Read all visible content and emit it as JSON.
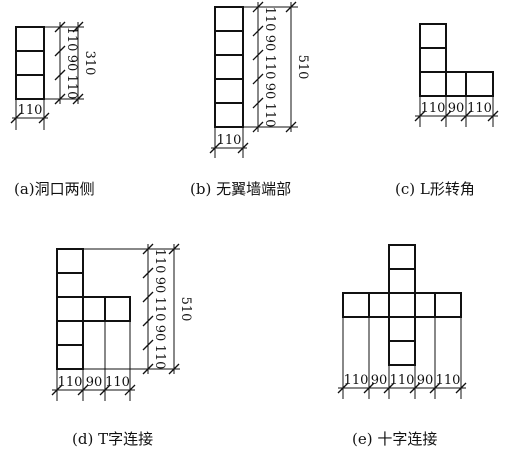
{
  "diagrams": [
    {
      "id": "a",
      "caption": "(a)洞口两侧",
      "v_segments": [
        "110",
        "90",
        "110"
      ],
      "v_total": "310",
      "h_segments": [
        "110"
      ]
    },
    {
      "id": "b",
      "caption": "(b) 无翼墙端部",
      "v_segments": [
        "110",
        "90",
        "110",
        "90",
        "110"
      ],
      "v_total": "510",
      "h_segments": [
        "110"
      ]
    },
    {
      "id": "c",
      "caption": "(c) L形转角",
      "h_segments": [
        "110",
        "90",
        "110"
      ]
    },
    {
      "id": "d",
      "caption": "(d) T字连接",
      "v_segments": [
        "110",
        "90",
        "110",
        "90",
        "110"
      ],
      "v_total": "510",
      "h_segments": [
        "110",
        "90",
        "110"
      ]
    },
    {
      "id": "e",
      "caption": "(e) 十字连接",
      "h_segments": [
        "110",
        "90",
        "110",
        "90",
        "110"
      ]
    }
  ]
}
